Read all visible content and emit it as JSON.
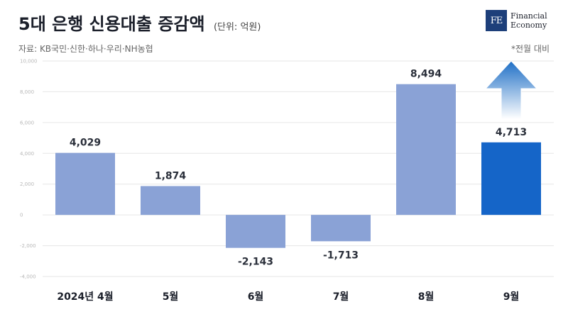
{
  "header": {
    "title": "5대 은행 신용대출 증감액",
    "unit": "(단위: 억원)",
    "source": "자료: KB국민·신한·하나·우리·NH농협",
    "note": "*전월 대비"
  },
  "logo": {
    "mark": "FE",
    "line1": "Financial",
    "line2": "Economy"
  },
  "colors": {
    "bar": "#8aa2d6",
    "highlight": "#1565c8",
    "arrow_top": "#1f6fc6",
    "arrow_bottom": "#ffffff"
  },
  "chart_data": {
    "type": "bar",
    "title": "5대 은행 신용대출 증감액",
    "categories": [
      "2024년 4월",
      "5월",
      "6월",
      "7월",
      "8월",
      "9월"
    ],
    "values": [
      4029,
      1874,
      -2143,
      -1713,
      8494,
      4713
    ],
    "value_labels": [
      "4,029",
      "1,874",
      "-2,143",
      "-1,713",
      "8,494",
      "4,713"
    ],
    "yticks": [
      "10,000",
      "8,000",
      "6,000",
      "4,000",
      "2,000",
      "0",
      "-2,000",
      "-4,000"
    ],
    "ylim": [
      -4000,
      10000
    ],
    "highlight_index": 5,
    "grid": true,
    "legend": "none"
  }
}
